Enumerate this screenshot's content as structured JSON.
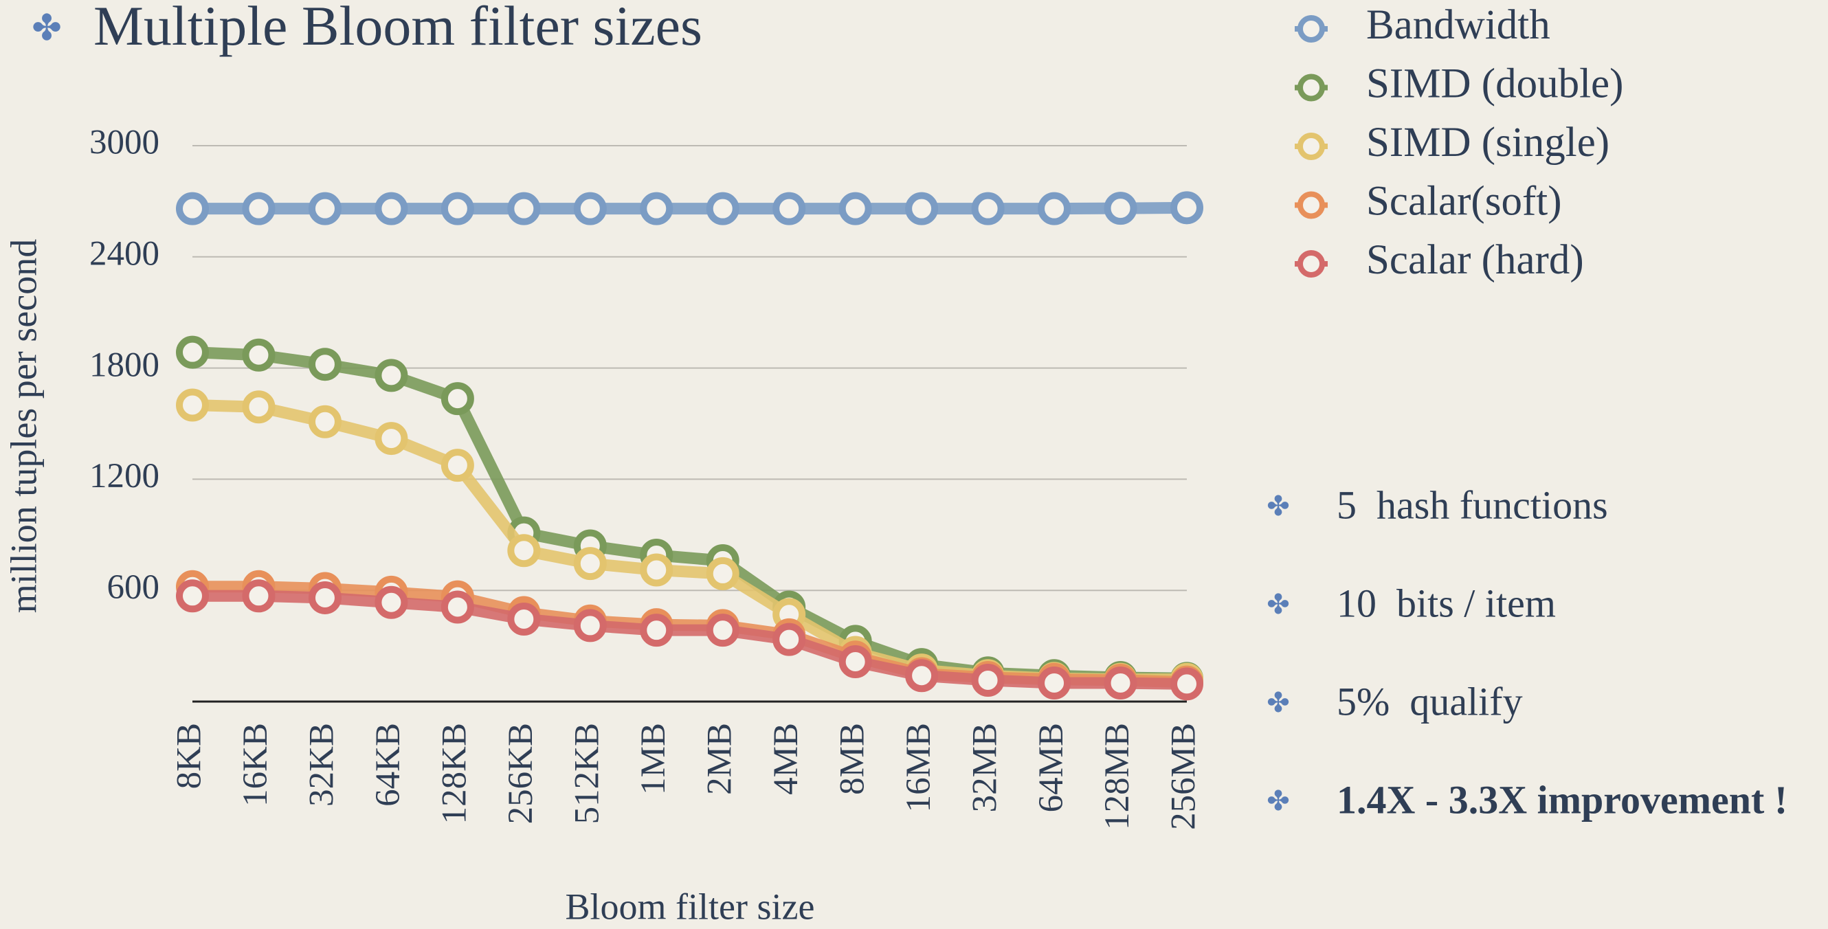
{
  "chart_data": {
    "type": "line",
    "title": "Multiple Bloom filter sizes",
    "x_label": "Bloom filter size",
    "y_label": "million tuples per second",
    "categories": [
      "8KB",
      "16KB",
      "32KB",
      "64KB",
      "128KB",
      "256KB",
      "512KB",
      "1MB",
      "2MB",
      "4MB",
      "8MB",
      "16MB",
      "32MB",
      "64MB",
      "128MB",
      "256MB"
    ],
    "series": [
      {
        "name": "Bandwidth",
        "color": "#7b9cc4",
        "values": [
          2660,
          2660,
          2660,
          2660,
          2660,
          2660,
          2660,
          2660,
          2660,
          2660,
          2660,
          2660,
          2660,
          2660,
          2662,
          2665
        ]
      },
      {
        "name": "SIMD (double)",
        "color": "#7a9a5a",
        "values": [
          1885,
          1870,
          1820,
          1760,
          1635,
          910,
          840,
          790,
          760,
          510,
          325,
          200,
          155,
          140,
          130,
          125
        ]
      },
      {
        "name": "SIMD (single)",
        "color": "#e3c46e",
        "values": [
          1600,
          1590,
          1510,
          1420,
          1275,
          815,
          745,
          710,
          690,
          470,
          265,
          170,
          140,
          125,
          120,
          120
        ]
      },
      {
        "name": "Scalar(soft)",
        "color": "#e8905a",
        "values": [
          620,
          620,
          610,
          590,
          565,
          480,
          435,
          415,
          410,
          360,
          240,
          150,
          130,
          120,
          115,
          105
        ]
      },
      {
        "name": "Scalar (hard)",
        "color": "#d46a6a",
        "values": [
          570,
          570,
          560,
          535,
          510,
          445,
          410,
          385,
          385,
          335,
          215,
          140,
          115,
          100,
          100,
          95
        ]
      }
    ],
    "ylim": [
      0,
      3000
    ],
    "yticks": [
      600,
      1200,
      1800,
      2400,
      3000
    ],
    "grid": true,
    "legend": "top-right",
    "notes": [
      "5  hash functions",
      "10  bits / item",
      "5%  qualify",
      "1.4X - 3.3X improvement !"
    ]
  }
}
